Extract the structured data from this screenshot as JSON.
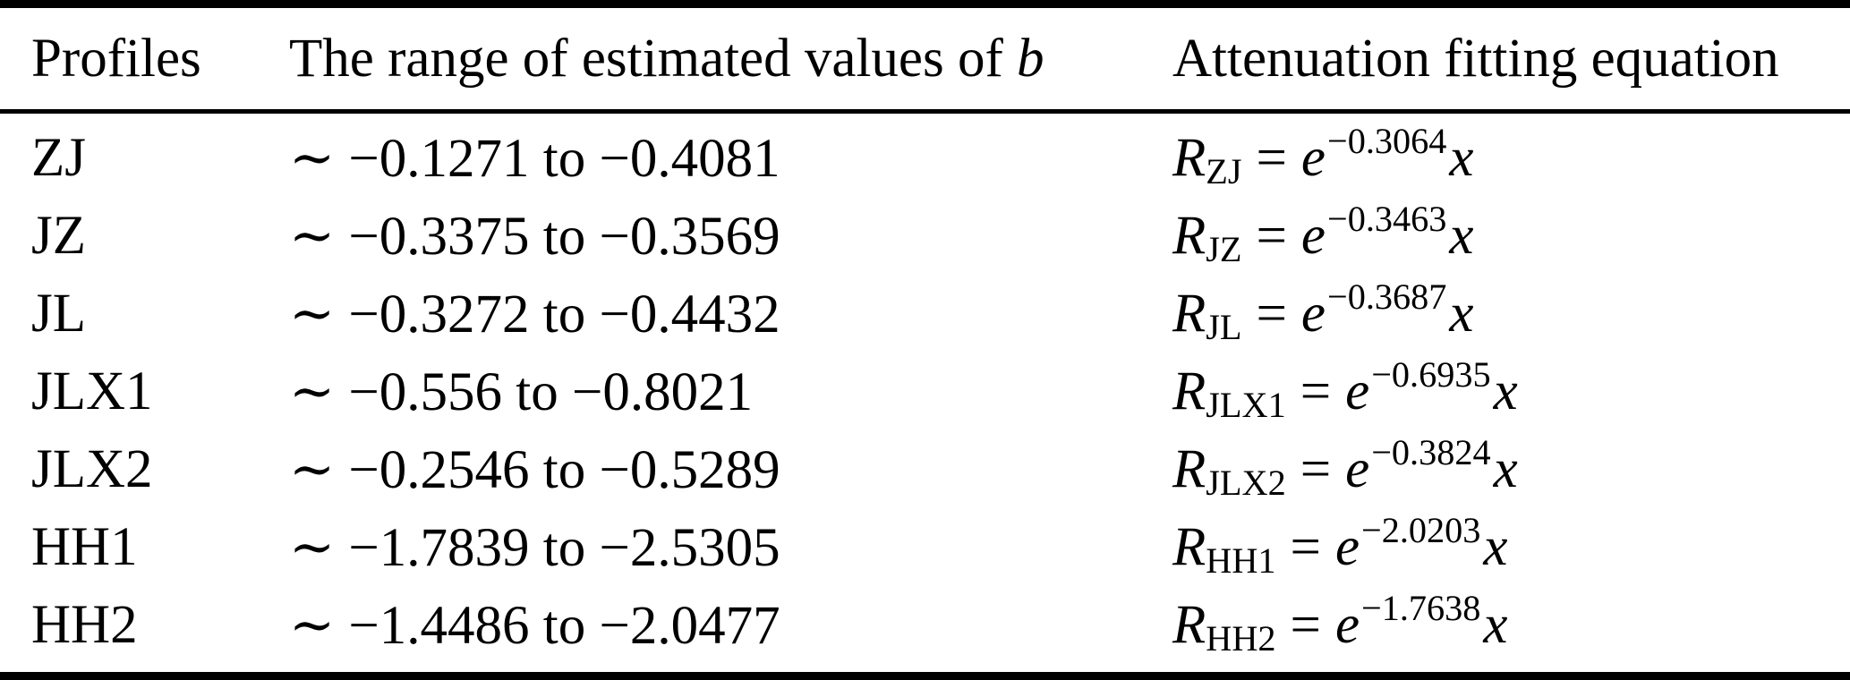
{
  "table": {
    "header": {
      "col1": "Profiles",
      "col2_prefix": "The range of estimated values of ",
      "col2_italic": "b",
      "col3": "Attenuation fitting equation"
    },
    "rows": [
      {
        "profile": "ZJ",
        "range": "∼ −0.1271 to −0.4081",
        "eq": {
          "R": "R",
          "sub": "ZJ",
          "equals": "=",
          "e": "e",
          "exp": "−0.3064",
          "x": "x"
        }
      },
      {
        "profile": "JZ",
        "range": "∼ −0.3375 to −0.3569",
        "eq": {
          "R": "R",
          "sub": "JZ",
          "equals": "=",
          "e": "e",
          "exp": "−0.3463",
          "x": "x"
        }
      },
      {
        "profile": "JL",
        "range": "∼ −0.3272 to −0.4432",
        "eq": {
          "R": "R",
          "sub": "JL",
          "equals": "=",
          "e": "e",
          "exp": "−0.3687",
          "x": "x"
        }
      },
      {
        "profile": "JLX1",
        "range": "∼ −0.556 to −0.8021",
        "eq": {
          "R": "R",
          "sub": "JLX1",
          "equals": "=",
          "e": "e",
          "exp": "−0.6935",
          "x": "x"
        }
      },
      {
        "profile": "JLX2",
        "range": "∼ −0.2546 to −0.5289",
        "eq": {
          "R": "R",
          "sub": "JLX2",
          "equals": "=",
          "e": "e",
          "exp": "−0.3824",
          "x": "x"
        }
      },
      {
        "profile": "HH1",
        "range": "∼ −1.7839 to −2.5305",
        "eq": {
          "R": "R",
          "sub": "HH1",
          "equals": "=",
          "e": "e",
          "exp": "−2.0203",
          "x": "x"
        }
      },
      {
        "profile": "HH2",
        "range": "∼ −1.4486 to −2.0477",
        "eq": {
          "R": "R",
          "sub": "HH2",
          "equals": "=",
          "e": "e",
          "exp": "−1.7638",
          "x": "x"
        }
      }
    ],
    "colors": {
      "text": "#000000",
      "background": "#ffffff",
      "rule": "#000000"
    }
  }
}
